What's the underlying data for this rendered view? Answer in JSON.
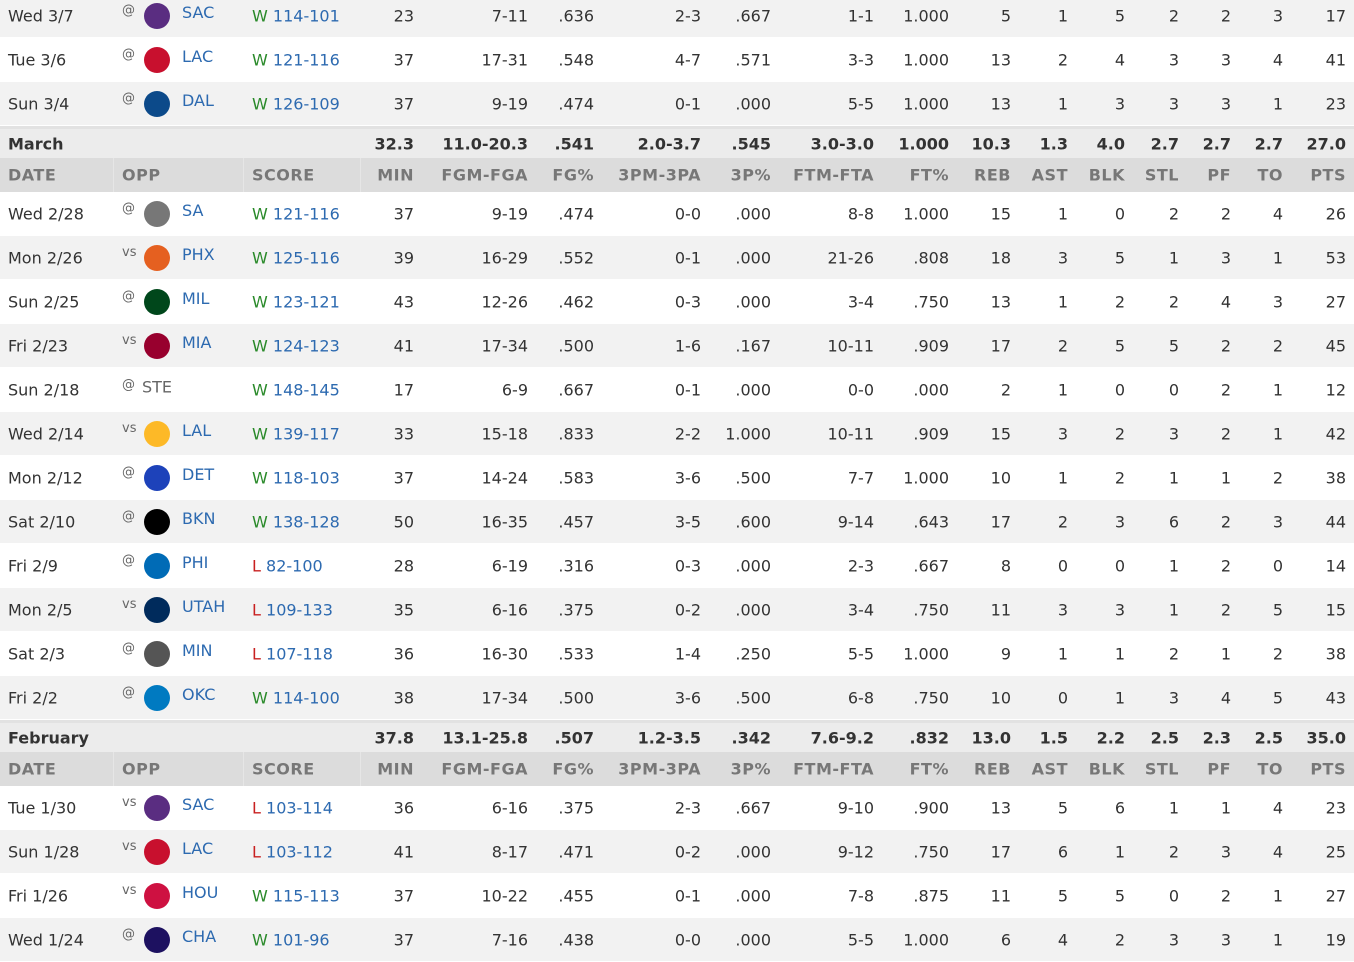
{
  "headers": [
    "DATE",
    "OPP",
    "SCORE",
    "MIN",
    "FGM-FGA",
    "FG%",
    "3PM-3PA",
    "3P%",
    "FTM-FTA",
    "FT%",
    "REB",
    "AST",
    "BLK",
    "STL",
    "PF",
    "TO",
    "PTS"
  ],
  "team_colors": {
    "SAC": "#5a2d81",
    "LAC": "#c8102e",
    "DAL": "#0c4a8a",
    "SA": "#777777",
    "PHX": "#e56020",
    "MIL": "#00471b",
    "MIA": "#98002e",
    "STE": "#ffffff",
    "LAL": "#fdb927",
    "DET": "#1d42ba",
    "BKN": "#000000",
    "PHI": "#006bb6",
    "UTAH": "#002b5c",
    "MIN": "#555555",
    "OKC": "#007ac1",
    "HOU": "#ce1141",
    "CHA": "#1d1160"
  },
  "sections": [
    {
      "rows": [
        [
          "Wed 3/7",
          "@",
          "SAC",
          "W",
          "114-101",
          "23",
          "7-11",
          ".636",
          "2-3",
          ".667",
          "1-1",
          "1.000",
          "5",
          "1",
          "5",
          "2",
          "2",
          "3",
          "17"
        ],
        [
          "Tue 3/6",
          "@",
          "LAC",
          "W",
          "121-116",
          "37",
          "17-31",
          ".548",
          "4-7",
          ".571",
          "3-3",
          "1.000",
          "13",
          "2",
          "4",
          "3",
          "3",
          "4",
          "41"
        ],
        [
          "Sun 3/4",
          "@",
          "DAL",
          "W",
          "126-109",
          "37",
          "9-19",
          ".474",
          "0-1",
          ".000",
          "5-5",
          "1.000",
          "13",
          "1",
          "3",
          "3",
          "3",
          "1",
          "23"
        ]
      ],
      "summary": {
        "label": "March",
        "values": [
          "32.3",
          "11.0-20.3",
          ".541",
          "2.0-3.7",
          ".545",
          "3.0-3.0",
          "1.000",
          "10.3",
          "1.3",
          "4.0",
          "2.7",
          "2.7",
          "2.7",
          "27.0"
        ]
      }
    },
    {
      "rows": [
        [
          "Wed 2/28",
          "@",
          "SA",
          "W",
          "121-116",
          "37",
          "9-19",
          ".474",
          "0-0",
          ".000",
          "8-8",
          "1.000",
          "15",
          "1",
          "0",
          "2",
          "2",
          "4",
          "26"
        ],
        [
          "Mon 2/26",
          "vs",
          "PHX",
          "W",
          "125-116",
          "39",
          "16-29",
          ".552",
          "0-1",
          ".000",
          "21-26",
          ".808",
          "18",
          "3",
          "5",
          "1",
          "3",
          "1",
          "53"
        ],
        [
          "Sun 2/25",
          "@",
          "MIL",
          "W",
          "123-121",
          "43",
          "12-26",
          ".462",
          "0-3",
          ".000",
          "3-4",
          ".750",
          "13",
          "1",
          "2",
          "2",
          "4",
          "3",
          "27"
        ],
        [
          "Fri 2/23",
          "vs",
          "MIA",
          "W",
          "124-123",
          "41",
          "17-34",
          ".500",
          "1-6",
          ".167",
          "10-11",
          ".909",
          "17",
          "2",
          "5",
          "5",
          "2",
          "2",
          "45"
        ],
        [
          "Sun 2/18",
          "@",
          "STE",
          "W",
          "148-145",
          "17",
          "6-9",
          ".667",
          "0-1",
          ".000",
          "0-0",
          ".000",
          "2",
          "1",
          "0",
          "0",
          "2",
          "1",
          "12"
        ],
        [
          "Wed 2/14",
          "vs",
          "LAL",
          "W",
          "139-117",
          "33",
          "15-18",
          ".833",
          "2-2",
          "1.000",
          "10-11",
          ".909",
          "15",
          "3",
          "2",
          "3",
          "2",
          "1",
          "42"
        ],
        [
          "Mon 2/12",
          "@",
          "DET",
          "W",
          "118-103",
          "37",
          "14-24",
          ".583",
          "3-6",
          ".500",
          "7-7",
          "1.000",
          "10",
          "1",
          "2",
          "1",
          "1",
          "2",
          "38"
        ],
        [
          "Sat 2/10",
          "@",
          "BKN",
          "W",
          "138-128",
          "50",
          "16-35",
          ".457",
          "3-5",
          ".600",
          "9-14",
          ".643",
          "17",
          "2",
          "3",
          "6",
          "2",
          "3",
          "44"
        ],
        [
          "Fri 2/9",
          "@",
          "PHI",
          "L",
          "82-100",
          "28",
          "6-19",
          ".316",
          "0-3",
          ".000",
          "2-3",
          ".667",
          "8",
          "0",
          "0",
          "1",
          "2",
          "0",
          "14"
        ],
        [
          "Mon 2/5",
          "vs",
          "UTAH",
          "L",
          "109-133",
          "35",
          "6-16",
          ".375",
          "0-2",
          ".000",
          "3-4",
          ".750",
          "11",
          "3",
          "3",
          "1",
          "2",
          "5",
          "15"
        ],
        [
          "Sat 2/3",
          "@",
          "MIN",
          "L",
          "107-118",
          "36",
          "16-30",
          ".533",
          "1-4",
          ".250",
          "5-5",
          "1.000",
          "9",
          "1",
          "1",
          "2",
          "1",
          "2",
          "38"
        ],
        [
          "Fri 2/2",
          "@",
          "OKC",
          "W",
          "114-100",
          "38",
          "17-34",
          ".500",
          "3-6",
          ".500",
          "6-8",
          ".750",
          "10",
          "0",
          "1",
          "3",
          "4",
          "5",
          "43"
        ]
      ],
      "summary": {
        "label": "February",
        "values": [
          "37.8",
          "13.1-25.8",
          ".507",
          "1.2-3.5",
          ".342",
          "7.6-9.2",
          ".832",
          "13.0",
          "1.5",
          "2.2",
          "2.5",
          "2.3",
          "2.5",
          "35.0"
        ]
      }
    },
    {
      "rows": [
        [
          "Tue 1/30",
          "vs",
          "SAC",
          "L",
          "103-114",
          "36",
          "6-16",
          ".375",
          "2-3",
          ".667",
          "9-10",
          ".900",
          "13",
          "5",
          "6",
          "1",
          "1",
          "4",
          "23"
        ],
        [
          "Sun 1/28",
          "vs",
          "LAC",
          "L",
          "103-112",
          "41",
          "8-17",
          ".471",
          "0-2",
          ".000",
          "9-12",
          ".750",
          "17",
          "6",
          "1",
          "2",
          "3",
          "4",
          "25"
        ],
        [
          "Fri 1/26",
          "vs",
          "HOU",
          "W",
          "115-113",
          "37",
          "10-22",
          ".455",
          "0-1",
          ".000",
          "7-8",
          ".875",
          "11",
          "5",
          "5",
          "0",
          "2",
          "1",
          "27"
        ],
        [
          "Wed 1/24",
          "@",
          "CHA",
          "W",
          "101-96",
          "37",
          "7-16",
          ".438",
          "0-0",
          ".000",
          "5-5",
          "1.000",
          "6",
          "4",
          "2",
          "3",
          "3",
          "1",
          "19"
        ]
      ]
    }
  ]
}
